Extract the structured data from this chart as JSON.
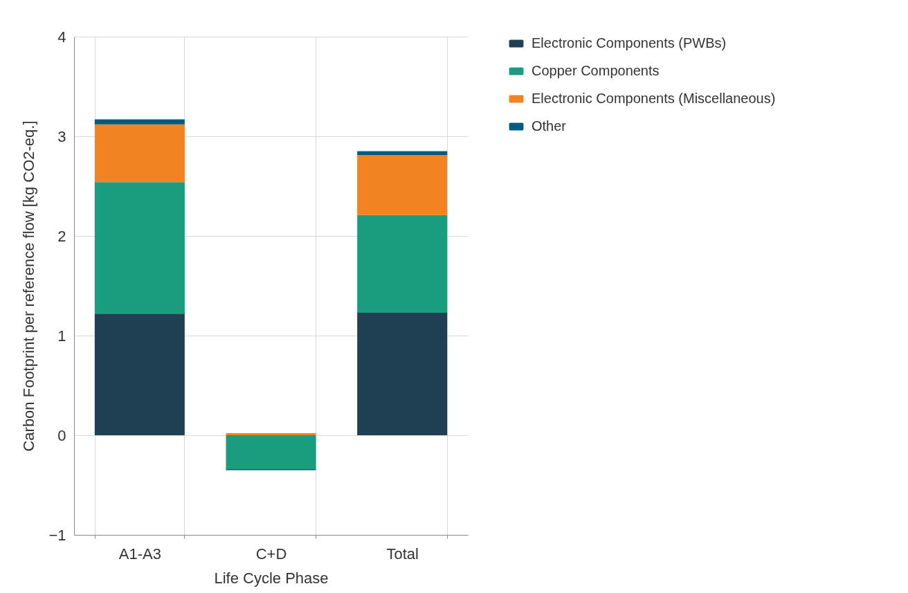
{
  "chart_data": {
    "type": "bar",
    "stacked": true,
    "xlabel": "Life Cycle Phase",
    "ylabel": "Carbon Footprint per reference flow [kg CO2-eq.]",
    "categories": [
      "A1-A3",
      "C+D",
      "Total"
    ],
    "series": [
      {
        "name": "Electronic Components (PWBs)",
        "color": "#1f3f52",
        "values": [
          1.22,
          0,
          1.23
        ]
      },
      {
        "name": "Copper Components",
        "color": "#1a9c7e",
        "values": [
          1.32,
          -0.34,
          0.98
        ]
      },
      {
        "name": "Electronic Components (Miscellaneous)",
        "color": "#f28322",
        "values": [
          0.58,
          0.02,
          0.6
        ]
      },
      {
        "name": "Other",
        "color": "#005b7f",
        "values": [
          0.05,
          -0.01,
          0.04
        ]
      }
    ],
    "ylim": [
      -1,
      4
    ],
    "yticks": [
      -1,
      0,
      1,
      2,
      3,
      4
    ],
    "grid": true,
    "legend": "right"
  }
}
